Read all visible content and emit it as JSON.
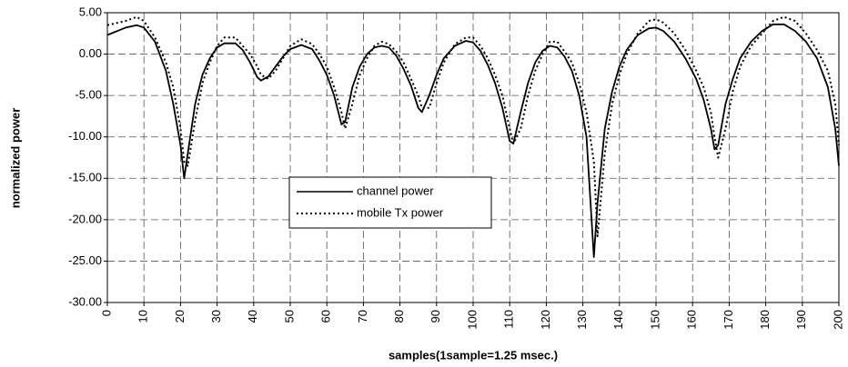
{
  "chart_data": {
    "type": "line",
    "xlabel": "samples(1sample=1.25 msec.)",
    "ylabel": "normalized power",
    "x": [
      0,
      5,
      8,
      10,
      13,
      16,
      18,
      20,
      21,
      22,
      24,
      26,
      28,
      30,
      32,
      35,
      37,
      39,
      41,
      42,
      44,
      46,
      48,
      50,
      53,
      56,
      58,
      60,
      62,
      64,
      65,
      67,
      69,
      71,
      73,
      75,
      77,
      79,
      81,
      83,
      85,
      86,
      88,
      90,
      92,
      95,
      98,
      100,
      102,
      104,
      106,
      108,
      110,
      111,
      113,
      115,
      117,
      119,
      121,
      123,
      125,
      127,
      129,
      131,
      133,
      134,
      136,
      138,
      140,
      142,
      145,
      148,
      150,
      152,
      155,
      158,
      161,
      163,
      165,
      166,
      167,
      169,
      171,
      173,
      176,
      179,
      182,
      185,
      188,
      191,
      194,
      197,
      199,
      200
    ],
    "series": [
      {
        "name": "channel power",
        "color": "#000000",
        "style": "solid",
        "values": [
          2.3,
          3.2,
          3.5,
          3.2,
          1.5,
          -2,
          -6,
          -11,
          -15,
          -12,
          -6,
          -2.5,
          -0.5,
          0.8,
          1.3,
          1.3,
          0.5,
          -1,
          -2.8,
          -3.2,
          -2.7,
          -1.5,
          -0.3,
          0.6,
          1.1,
          0.6,
          -0.8,
          -2.5,
          -5,
          -8.5,
          -8.2,
          -4,
          -1.5,
          0,
          0.8,
          1,
          0.8,
          -0.2,
          -1.8,
          -3.8,
          -6.5,
          -7,
          -5,
          -2.5,
          -0.5,
          1,
          1.6,
          1.4,
          0.4,
          -1.3,
          -3.5,
          -6.5,
          -10.5,
          -10.8,
          -7,
          -3.5,
          -1,
          0.4,
          1,
          0.8,
          -0.3,
          -2,
          -5,
          -10,
          -24.5,
          -18,
          -9,
          -4.5,
          -1.5,
          0.5,
          2.3,
          3.1,
          3.2,
          2.8,
          1.5,
          -0.5,
          -3,
          -5.5,
          -9,
          -11.5,
          -11,
          -6,
          -3,
          -0.5,
          1.5,
          2.8,
          3.6,
          3.6,
          2.8,
          1.5,
          -0.5,
          -4,
          -9,
          -13.5
        ]
      },
      {
        "name": "mobile Tx power",
        "color": "#000000",
        "style": "dotted",
        "values": [
          3.5,
          4,
          4.5,
          4,
          2,
          -1,
          -4,
          -9,
          -13,
          -13.5,
          -8,
          -3.5,
          -1,
          1,
          2,
          2,
          1,
          0,
          -1.5,
          -2.5,
          -3,
          -2,
          -0.5,
          1,
          1.8,
          1.2,
          0,
          -1.5,
          -4,
          -7,
          -9,
          -6,
          -2.5,
          -0.5,
          1,
          1.5,
          1.2,
          0.3,
          -1,
          -3,
          -5,
          -6.5,
          -6.5,
          -3.5,
          -1,
          1.2,
          2,
          2,
          1,
          -0.5,
          -2.5,
          -5,
          -9,
          -10.8,
          -9,
          -5,
          -2,
          0,
          1.5,
          1.5,
          0.3,
          -1,
          -3.5,
          -7,
          -13,
          -22,
          -12,
          -6,
          -2.5,
          0,
          2.5,
          4,
          4.2,
          3.8,
          2.5,
          0.5,
          -2,
          -4,
          -7,
          -10,
          -12.5,
          -9,
          -4.5,
          -1.5,
          1,
          2.5,
          4,
          4.5,
          4,
          2.5,
          0.5,
          -2,
          -6,
          -11
        ]
      }
    ],
    "xlim": [
      0,
      200
    ],
    "xticks": [
      0,
      10,
      20,
      30,
      40,
      50,
      60,
      70,
      80,
      90,
      100,
      110,
      120,
      130,
      140,
      150,
      160,
      170,
      180,
      190,
      200
    ],
    "ylim": [
      -30,
      5
    ],
    "yticks": [
      {
        "value": 5,
        "label": "5.00"
      },
      {
        "value": 0,
        "label": "0.00"
      },
      {
        "value": -5,
        "label": "-5.00"
      },
      {
        "value": -10,
        "label": "-10.00"
      },
      {
        "value": -15,
        "label": "-15.00"
      },
      {
        "value": -20,
        "label": "-20.00"
      },
      {
        "value": -25,
        "label": "-25.00"
      },
      {
        "value": -30,
        "label": "-30.00"
      }
    ],
    "grid": true,
    "legend": "center"
  }
}
